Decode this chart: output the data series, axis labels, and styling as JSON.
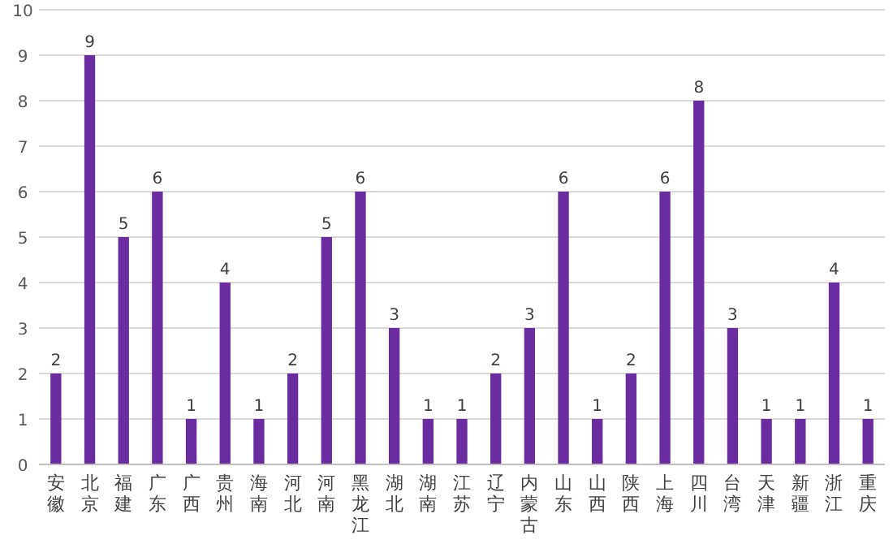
{
  "chart_data": {
    "type": "bar",
    "categories": [
      "安徽",
      "北京",
      "福建",
      "广东",
      "广西",
      "贵州",
      "海南",
      "河北",
      "河南",
      "黑龙江",
      "湖北",
      "湖南",
      "江苏",
      "辽宁",
      "内蒙古",
      "山东",
      "山西",
      "陕西",
      "上海",
      "四川",
      "台湾",
      "天津",
      "新疆",
      "浙江",
      "重庆"
    ],
    "values": [
      2,
      9,
      5,
      6,
      1,
      4,
      1,
      2,
      5,
      6,
      3,
      1,
      1,
      2,
      3,
      6,
      1,
      2,
      6,
      8,
      3,
      1,
      1,
      4,
      1
    ],
    "color": "#6a2c9e",
    "ylim": [
      0,
      10
    ],
    "yticks": [
      0,
      1,
      2,
      3,
      4,
      5,
      6,
      7,
      8,
      9,
      10
    ],
    "grid": "y",
    "data_labels": true
  }
}
